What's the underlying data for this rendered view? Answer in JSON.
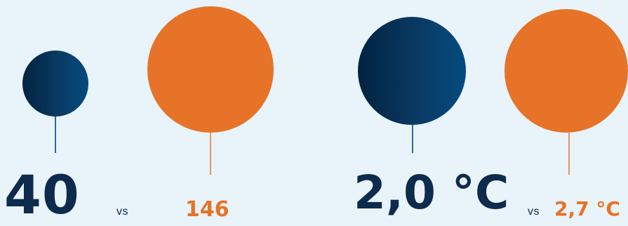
{
  "comparisons": [
    {
      "left_value": "40",
      "vs_label": "vs",
      "right_value": "146",
      "left_color": "#0c2b4d",
      "right_color": "#e67327"
    },
    {
      "left_value": "2,0 °C",
      "vs_label": "vs",
      "right_value": "2,7 °C",
      "left_color": "#0c2b4d",
      "right_color": "#e67327"
    }
  ]
}
